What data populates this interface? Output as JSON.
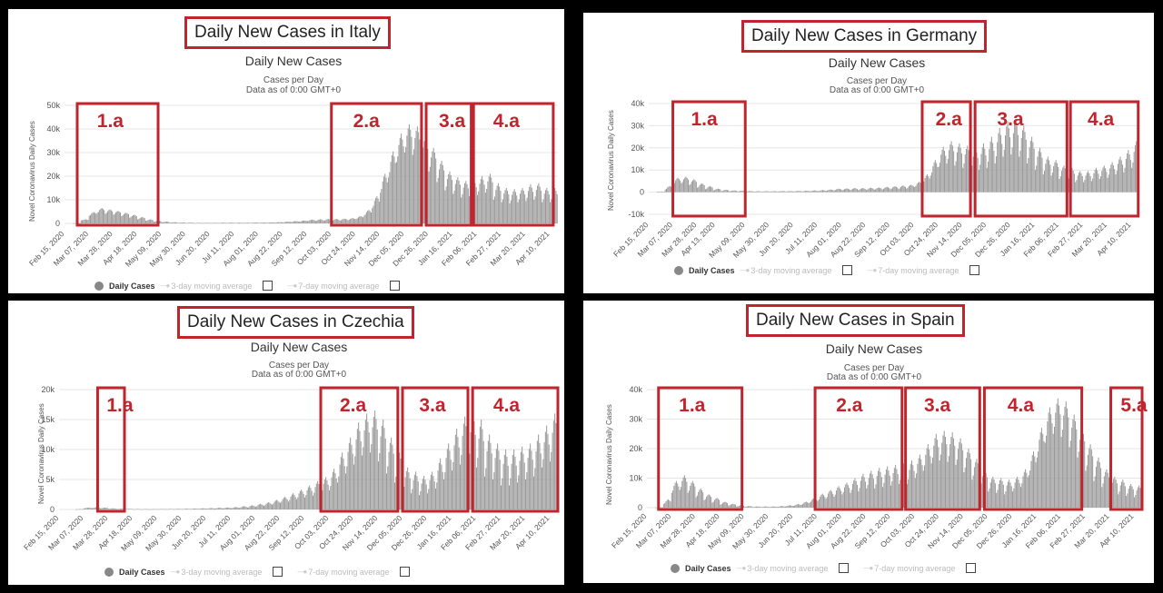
{
  "panels": [
    {
      "country_title": "Daily New Cases in Italy",
      "chart_title": "Daily New Cases",
      "subtitle_1": "Cases per Day",
      "subtitle_2": "Data as of 0:00 GMT+0",
      "ylabel": "Novel Coronavirus Daily Cases",
      "legend": {
        "daily": "Daily Cases",
        "ma3": "3-day moving average",
        "ma7": "7-day moving average"
      }
    },
    {
      "country_title": "Daily New Cases in Germany",
      "chart_title": "Daily New Cases",
      "subtitle_1": "Cases per Day",
      "subtitle_2": "Data as of 0:00 GMT+0",
      "ylabel": "Novel Coronavirus Daily Cases",
      "legend": {
        "daily": "Daily Cases",
        "ma3": "3-day moving average",
        "ma7": "7-day moving average"
      }
    },
    {
      "country_title": "Daily New Cases in Czechia",
      "chart_title": "Daily New Cases",
      "subtitle_1": "Cases per Day",
      "subtitle_2": "Data as of 0:00 GMT+0",
      "ylabel": "Novel Coronavirus Daily Cases",
      "legend": {
        "daily": "Daily Cases",
        "ma3": "3-day moving average",
        "ma7": "7-day moving average"
      }
    },
    {
      "country_title": "Daily New Cases in Spain",
      "chart_title": "Daily New Cases",
      "subtitle_1": "Cases per Day",
      "subtitle_2": "Data as of 0:00 GMT+0",
      "ylabel": "Novel Coronavirus Daily Cases",
      "legend": {
        "daily": "Daily Cases",
        "ma3": "3-day moving average",
        "ma7": "7-day moving average"
      }
    }
  ],
  "colors": {
    "bars": "#999999",
    "highlight": "#c0242d",
    "grid": "#e6e6e6",
    "axis_text": "#555555"
  },
  "chart_data": [
    {
      "type": "bar",
      "country": "Italy",
      "ylim": [
        0,
        50000
      ],
      "yticks": [
        0,
        10000,
        20000,
        30000,
        40000,
        50000
      ],
      "ytick_labels": [
        "0",
        "10k",
        "20k",
        "30k",
        "40k",
        "50k"
      ],
      "x_tick_labels": [
        "Feb 15, 2020",
        "Mar 07, 2020",
        "Mar 28, 2020",
        "Apr 18, 2020",
        "May 09, 2020",
        "May 30, 2020",
        "Jun 20, 2020",
        "Jul 11, 2020",
        "Aug 01, 2020",
        "Aug 22, 2020",
        "Sep 12, 2020",
        "Oct 03, 2020",
        "Oct 24, 2020",
        "Nov 14, 2020",
        "Dec 05, 2020",
        "Dec 26, 2020",
        "Jan 16, 2021",
        "Feb 06, 2021",
        "Feb 27, 2021",
        "Mar 20, 2021",
        "Apr 10, 2021"
      ],
      "weekly_avg_cases": [
        0,
        100,
        1500,
        4000,
        5500,
        5000,
        4500,
        3800,
        3000,
        2200,
        1400,
        900,
        600,
        400,
        300,
        250,
        200,
        200,
        200,
        250,
        250,
        250,
        250,
        300,
        300,
        350,
        450,
        600,
        800,
        1000,
        1300,
        1400,
        1500,
        1500,
        1600,
        1800,
        2500,
        4500,
        9000,
        17000,
        25000,
        32000,
        36000,
        35000,
        31000,
        27000,
        22000,
        18000,
        16000,
        14500,
        15000,
        16000,
        17000,
        13500,
        12000,
        11500,
        12000,
        13000,
        13500,
        12000,
        12000,
        16000,
        19000,
        21000,
        23000,
        22500,
        21500,
        20000,
        18000,
        16000,
        15000
      ],
      "weekly_amplitude": [
        0,
        40,
        200,
        800,
        1000,
        900,
        800,
        700,
        600,
        500,
        300,
        200,
        150,
        100,
        80,
        70,
        60,
        60,
        60,
        70,
        70,
        70,
        70,
        80,
        80,
        90,
        100,
        150,
        200,
        250,
        300,
        350,
        400,
        400,
        400,
        450,
        600,
        1200,
        2500,
        4000,
        5500,
        6000,
        6000,
        6000,
        5500,
        5000,
        4500,
        4000,
        3500,
        3500,
        3500,
        4000,
        4000,
        3500,
        3000,
        3000,
        3000,
        3500,
        3500,
        3000,
        3000,
        4000,
        4500,
        5000,
        5000,
        5000,
        4500,
        4500,
        4000,
        4000,
        3500
      ],
      "regions": [
        {
          "label": "1.a",
          "from": "Feb 26, 2020",
          "to": "May 06, 2020"
        },
        {
          "label": "2.a",
          "from": "Oct 03, 2020",
          "to": "Dec 20, 2020"
        },
        {
          "label": "3.a",
          "from": "Dec 24, 2020",
          "to": "Feb 01, 2021"
        },
        {
          "label": "4.a",
          "from": "Feb 03, 2021",
          "to": "Apr 13, 2021"
        }
      ]
    },
    {
      "type": "bar",
      "country": "Germany",
      "ylim": [
        -10000,
        40000
      ],
      "yticks": [
        -10000,
        0,
        10000,
        20000,
        30000,
        40000
      ],
      "ytick_labels": [
        "-10k",
        "0",
        "10k",
        "20k",
        "30k",
        "40k"
      ],
      "x_tick_labels": [
        "Feb 15, 2020",
        "Mar 07, 2020",
        "Mar 28, 2020",
        "Apr 13, 2020",
        "May 09, 2020",
        "May 30, 2020",
        "Jun 20, 2020",
        "Jul 11, 2020",
        "Aug 01, 2020",
        "Aug 22, 2020",
        "Sep 12, 2020",
        "Oct 03, 2020",
        "Oct 24, 2020",
        "Nov 14, 2020",
        "Dec 05, 2020",
        "Dec 26, 2020",
        "Jan 16, 2021",
        "Feb 06, 2021",
        "Feb 27, 2021",
        "Mar 20, 2021",
        "Apr 10, 2021"
      ],
      "weekly_avg_cases": [
        0,
        200,
        2000,
        5000,
        5500,
        4500,
        3000,
        2000,
        1200,
        800,
        600,
        500,
        400,
        350,
        350,
        350,
        400,
        400,
        450,
        500,
        600,
        700,
        900,
        1200,
        1300,
        1400,
        1400,
        1500,
        1600,
        1800,
        2000,
        2200,
        2500,
        3500,
        6000,
        11000,
        16000,
        18000,
        17000,
        16000,
        15000,
        16000,
        18000,
        21000,
        24000,
        25000,
        23000,
        19000,
        15000,
        12000,
        11000,
        9000,
        8000,
        7000,
        7000,
        8000,
        9000,
        10000,
        12000,
        14000,
        17000,
        20000,
        21000,
        20000,
        19000,
        18000,
        18000,
        17000,
        16000,
        15000,
        14000
      ],
      "weekly_amplitude": [
        0,
        80,
        800,
        1500,
        1500,
        1300,
        1000,
        700,
        400,
        300,
        200,
        150,
        120,
        100,
        100,
        100,
        100,
        100,
        120,
        150,
        200,
        250,
        300,
        400,
        400,
        450,
        450,
        500,
        500,
        600,
        700,
        800,
        900,
        1200,
        2000,
        3500,
        4500,
        5000,
        5000,
        5000,
        5000,
        6000,
        7000,
        8000,
        8000,
        8000,
        7000,
        6000,
        5000,
        4000,
        3500,
        3000,
        3000,
        2500,
        2500,
        3000,
        3000,
        3500,
        4000,
        5000,
        6000,
        6000,
        6000,
        6000,
        6000,
        5500,
        5500,
        5000,
        5000,
        4500,
        4000
      ],
      "regions": [
        {
          "label": "1.a",
          "from": "Mar 07, 2020",
          "to": "May 09, 2020"
        },
        {
          "label": "2.a",
          "from": "Oct 10, 2020",
          "to": "Nov 21, 2020"
        },
        {
          "label": "3.a",
          "from": "Nov 25, 2020",
          "to": "Feb 13, 2021"
        },
        {
          "label": "4.a",
          "from": "Feb 16, 2021",
          "to": "Apr 16, 2021"
        }
      ]
    },
    {
      "type": "bar",
      "country": "Czechia",
      "ylim": [
        0,
        20000
      ],
      "yticks": [
        0,
        5000,
        10000,
        15000,
        20000
      ],
      "ytick_labels": [
        "0",
        "5k",
        "10k",
        "15k",
        "20k"
      ],
      "x_tick_labels": [
        "Feb 15, 2020",
        "Mar 07, 2020",
        "Mar 28, 2020",
        "Apr 18, 2020",
        "May 09, 2020",
        "May 30, 2020",
        "Jun 20, 2020",
        "Jul 11, 2020",
        "Aug 01, 2020",
        "Aug 22, 2020",
        "Sep 12, 2020",
        "Oct 03, 2020",
        "Oct 24, 2020",
        "Nov 14, 2020",
        "Dec 05, 2020",
        "Dec 26, 2020",
        "Jan 16, 2021",
        "Feb 06, 2021",
        "Feb 27, 2021",
        "Mar 20, 2021",
        "Apr 10, 2021"
      ],
      "weekly_avg_cases": [
        0,
        0,
        50,
        250,
        300,
        250,
        150,
        100,
        80,
        60,
        50,
        50,
        60,
        70,
        80,
        100,
        120,
        150,
        180,
        220,
        250,
        300,
        400,
        500,
        700,
        900,
        1200,
        1600,
        2000,
        2500,
        3000,
        3500,
        4000,
        5000,
        7000,
        9000,
        11000,
        12500,
        13000,
        11500,
        9000,
        7000,
        5000,
        4500,
        4000,
        4500,
        6000,
        8000,
        10000,
        11500,
        12000,
        11000,
        9000,
        8000,
        7000,
        7000,
        7500,
        8000,
        9000,
        10500,
        12000,
        13000,
        13000,
        12500,
        11000,
        10000,
        8500,
        7500,
        6500,
        5500,
        5000
      ],
      "weekly_amplitude": [
        0,
        0,
        20,
        60,
        80,
        60,
        40,
        30,
        20,
        20,
        20,
        20,
        20,
        20,
        30,
        30,
        40,
        50,
        60,
        70,
        80,
        100,
        150,
        200,
        250,
        300,
        400,
        500,
        700,
        800,
        1000,
        1200,
        1400,
        1800,
        2500,
        3000,
        3500,
        3500,
        3500,
        3500,
        3000,
        2500,
        2000,
        1800,
        1600,
        1800,
        2500,
        3000,
        3500,
        4000,
        4500,
        4000,
        3500,
        3000,
        3000,
        3000,
        3000,
        3000,
        3500,
        3500,
        4000,
        4000,
        4000,
        4000,
        3500,
        3500,
        3000,
        3000,
        2500,
        2000,
        2000
      ],
      "regions": [
        {
          "label": "1.a",
          "from": "Mar 19, 2020",
          "to": "Apr 11, 2020"
        },
        {
          "label": "2.a",
          "from": "Sep 26, 2020",
          "to": "Dec 01, 2020"
        },
        {
          "label": "3.a",
          "from": "Dec 05, 2020",
          "to": "Jan 30, 2021"
        },
        {
          "label": "4.a",
          "from": "Feb 03, 2021",
          "to": "Apr 17, 2021"
        }
      ]
    },
    {
      "type": "bar",
      "country": "Spain",
      "ylim": [
        0,
        40000
      ],
      "yticks": [
        0,
        10000,
        20000,
        30000,
        40000
      ],
      "ytick_labels": [
        "0",
        "10k",
        "20k",
        "30k",
        "40k"
      ],
      "x_tick_labels": [
        "Feb 15, 2020",
        "Mar 07, 2020",
        "Mar 28, 2020",
        "Apr 18, 2020",
        "May 09, 2020",
        "May 30, 2020",
        "Jun 20, 2020",
        "Jul 11, 2020",
        "Aug 01, 2020",
        "Aug 22, 2020",
        "Sep 12, 2020",
        "Oct 03, 2020",
        "Oct 24, 2020",
        "Nov 14, 2020",
        "Dec 05, 2020",
        "Dec 26, 2020",
        "Jan 16, 2021",
        "Feb 06, 2021",
        "Feb 27, 2021",
        "Mar 20, 2021",
        "Apr 10, 2021"
      ],
      "weekly_avg_cases": [
        0,
        100,
        2000,
        7000,
        8500,
        7000,
        5000,
        3500,
        2500,
        1500,
        1000,
        600,
        400,
        300,
        300,
        300,
        400,
        600,
        900,
        1500,
        2500,
        3500,
        4500,
        5500,
        6500,
        7500,
        8500,
        9500,
        10000,
        10500,
        11000,
        11500,
        12000,
        14000,
        17000,
        20000,
        21000,
        20500,
        19000,
        16000,
        13000,
        10000,
        8000,
        7500,
        7000,
        8000,
        10000,
        15000,
        22000,
        28000,
        31000,
        30000,
        26000,
        22000,
        17000,
        13000,
        10000,
        8000,
        7000,
        6000,
        5500,
        5000,
        5000,
        5000,
        5500,
        6000,
        6500,
        7000,
        7500,
        7500,
        7000
      ],
      "weekly_amplitude": [
        0,
        50,
        800,
        2000,
        2500,
        2000,
        1500,
        1000,
        800,
        500,
        300,
        200,
        150,
        100,
        100,
        100,
        150,
        200,
        300,
        500,
        800,
        1200,
        1500,
        1800,
        2000,
        2500,
        3000,
        3000,
        3500,
        3500,
        3500,
        3500,
        4000,
        4000,
        4500,
        5000,
        5000,
        5000,
        4500,
        4000,
        3500,
        3000,
        2500,
        2500,
        2500,
        2500,
        3000,
        4000,
        5000,
        6000,
        6000,
        6000,
        5500,
        5000,
        4500,
        4000,
        3000,
        2500,
        2500,
        2000,
        2000,
        2000,
        2000,
        2000,
        2000,
        2500,
        2500,
        3000,
        3000,
        3000,
        3000
      ],
      "regions": [
        {
          "label": "1.a",
          "from": "Feb 25, 2020",
          "to": "May 07, 2020"
        },
        {
          "label": "2.a",
          "from": "Jul 09, 2020",
          "to": "Sep 22, 2020"
        },
        {
          "label": "3.a",
          "from": "Sep 25, 2020",
          "to": "Nov 28, 2020"
        },
        {
          "label": "4.a",
          "from": "Dec 02, 2020",
          "to": "Feb 24, 2021"
        },
        {
          "label": "5.a",
          "from": "Mar 21, 2021",
          "to": "Apr 17, 2021"
        }
      ]
    }
  ]
}
